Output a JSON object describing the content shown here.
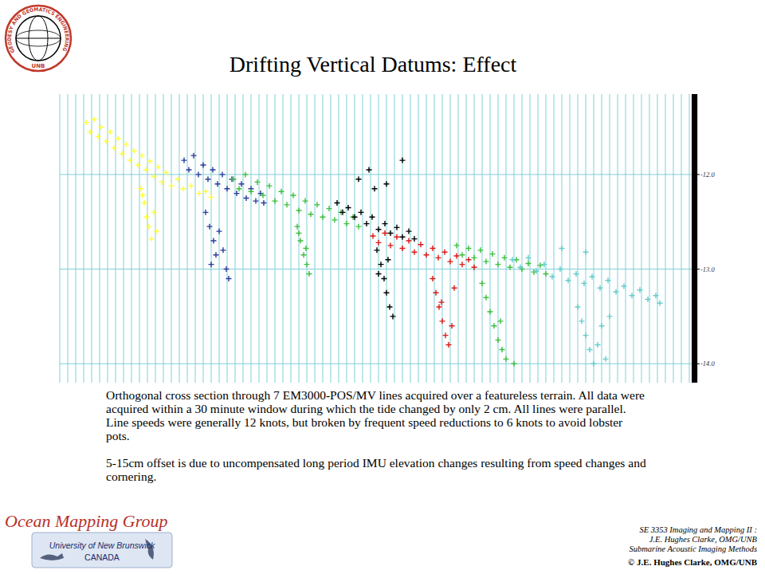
{
  "header": {
    "logo_ring": "GEODESY AND GEOMATICS ENGINEERING",
    "logo_center": "UNB"
  },
  "chart_data": {
    "type": "scatter",
    "title": "Drifting Vertical Datums: Effect",
    "marker": "plus",
    "grid": true,
    "tick_labels": "y",
    "xlim": [
      0,
      80
    ],
    "xticks": [
      0,
      1,
      2,
      3,
      4,
      5,
      6,
      7,
      8,
      9,
      10,
      11,
      12,
      13,
      14,
      15,
      16,
      17,
      18,
      19,
      20,
      21,
      22,
      23,
      24,
      25,
      26,
      27,
      28,
      29,
      30,
      31,
      32,
      33,
      34,
      35,
      36,
      37,
      38,
      39,
      40,
      41,
      42,
      43,
      44,
      45,
      46,
      47,
      48,
      49,
      50,
      51,
      52,
      53,
      54,
      55,
      56,
      57,
      58,
      59,
      60,
      61,
      62,
      63,
      64,
      65,
      66,
      67,
      68,
      69,
      70,
      71,
      72,
      73,
      74,
      75,
      76,
      77,
      78,
      79,
      80
    ],
    "ylim": [
      -14.2,
      -11.15
    ],
    "yticks": [
      {
        "value": -12,
        "label": "-12.0"
      },
      {
        "value": -13,
        "label": "-13.0"
      },
      {
        "value": -14,
        "label": "-14.0"
      }
    ],
    "series": [
      {
        "color": "#ffff33",
        "x": [
          3.3,
          3.8,
          4.3,
          4.8,
          5.2,
          5.8,
          6.3,
          6.8,
          7.3,
          7.8,
          8.3,
          8.8,
          9.3,
          9.8,
          10.3,
          10.8,
          11.3,
          11.8,
          12.3,
          12.8,
          13.3,
          14.0,
          14.8,
          15.5,
          16.5,
          17.5,
          18.3,
          19.0,
          10.2,
          10.6,
          10.9,
          11.2,
          11.5,
          11.8,
          12.1,
          10.4
        ],
        "values": [
          -11.45,
          -11.55,
          -11.42,
          -11.6,
          -11.5,
          -11.65,
          -11.55,
          -11.72,
          -11.62,
          -11.78,
          -11.68,
          -11.85,
          -11.75,
          -11.9,
          -11.8,
          -11.95,
          -11.86,
          -12.02,
          -11.92,
          -12.08,
          -11.98,
          -12.12,
          -12.05,
          -12.15,
          -12.12,
          -12.2,
          -12.18,
          -12.24,
          -12.15,
          -12.3,
          -12.45,
          -12.55,
          -12.68,
          -12.4,
          -12.6,
          -12.22
        ]
      },
      {
        "color": "#2b3a9c",
        "x": [
          15.6,
          16.2,
          16.8,
          17.4,
          18.0,
          18.6,
          19.2,
          19.8,
          20.4,
          21.0,
          21.6,
          22.2,
          22.8,
          23.4,
          24.0,
          24.6,
          25.2,
          25.6,
          18.3,
          18.8,
          19.3,
          19.6,
          20.0,
          20.5,
          20.9,
          21.2,
          19.0
        ],
        "values": [
          -11.85,
          -11.95,
          -11.8,
          -12.0,
          -11.9,
          -12.05,
          -11.95,
          -12.1,
          -12.0,
          -12.15,
          -12.05,
          -12.2,
          -12.1,
          -12.25,
          -12.15,
          -12.28,
          -12.2,
          -12.3,
          -12.4,
          -12.55,
          -12.7,
          -12.85,
          -12.6,
          -12.8,
          -13.0,
          -13.1,
          -12.95
        ]
      },
      {
        "color": "#3cbf3c",
        "x": [
          21.8,
          22.5,
          23.3,
          24.0,
          24.8,
          25.5,
          26.3,
          27.0,
          27.8,
          28.5,
          29.3,
          30.0,
          30.8,
          31.5,
          32.3,
          33.0,
          33.8,
          34.5,
          35.3,
          36.0,
          36.8,
          37.5,
          29.8,
          30.2,
          30.6,
          31.0,
          31.3,
          30.0,
          30.9
        ],
        "values": [
          -12.05,
          -12.15,
          -12.0,
          -12.18,
          -12.08,
          -12.22,
          -12.12,
          -12.28,
          -12.18,
          -12.32,
          -12.22,
          -12.38,
          -12.28,
          -12.42,
          -12.32,
          -12.45,
          -12.36,
          -12.48,
          -12.4,
          -12.52,
          -12.45,
          -12.55,
          -12.55,
          -12.7,
          -12.85,
          -12.95,
          -13.05,
          -12.62,
          -12.78
        ]
      },
      {
        "color": "#000000",
        "x": [
          34.8,
          35.5,
          36.2,
          37.0,
          37.8,
          38.5,
          39.2,
          40.0,
          40.8,
          41.5,
          42.3,
          43.0,
          43.8,
          44.5,
          37.5,
          38.8,
          41.0,
          43.0,
          39.5,
          39.8,
          40.3,
          40.7,
          41.0,
          41.4,
          41.8,
          40.0,
          41.2
        ],
        "values": [
          -12.3,
          -12.4,
          -12.35,
          -12.45,
          -12.4,
          -12.52,
          -12.45,
          -12.58,
          -12.52,
          -12.62,
          -12.56,
          -12.66,
          -12.6,
          -12.68,
          -12.05,
          -11.95,
          -12.1,
          -11.85,
          -12.15,
          -12.8,
          -12.95,
          -13.1,
          -13.25,
          -13.4,
          -13.5,
          -13.05,
          -12.9
        ]
      },
      {
        "color": "#e01818",
        "x": [
          39.3,
          40.0,
          40.8,
          41.5,
          42.3,
          43.0,
          43.8,
          44.5,
          45.3,
          46.0,
          46.8,
          47.5,
          48.3,
          49.0,
          49.8,
          50.5,
          51.3,
          52.0,
          46.8,
          47.2,
          47.6,
          48.0,
          48.4,
          48.8,
          49.2,
          47.9,
          49.5
        ],
        "values": [
          -12.65,
          -12.72,
          -12.62,
          -12.75,
          -12.66,
          -12.78,
          -12.7,
          -12.82,
          -12.74,
          -12.85,
          -12.78,
          -12.88,
          -12.82,
          -12.92,
          -12.86,
          -12.95,
          -12.9,
          -12.98,
          -13.1,
          -13.25,
          -13.4,
          -13.55,
          -13.7,
          -13.8,
          -13.6,
          -13.35,
          -13.2
        ]
      },
      {
        "color": "#3cbf3c",
        "x": [
          49.8,
          50.5,
          51.3,
          52.0,
          52.8,
          53.5,
          54.3,
          55.0,
          55.8,
          56.5,
          57.3,
          58.0,
          58.8,
          59.5,
          60.3,
          61.0,
          53.0,
          53.5,
          54.0,
          54.5,
          55.0,
          55.5,
          56.0,
          57.0,
          55.3
        ],
        "values": [
          -12.75,
          -12.85,
          -12.78,
          -12.88,
          -12.8,
          -12.92,
          -12.84,
          -12.95,
          -12.88,
          -12.98,
          -12.9,
          -13.0,
          -12.94,
          -13.03,
          -12.96,
          -13.05,
          -13.15,
          -13.3,
          -13.45,
          -13.6,
          -13.75,
          -13.85,
          -13.95,
          -14.0,
          -13.55
        ]
      },
      {
        "color": "#66cccc",
        "x": [
          56.8,
          57.8,
          58.8,
          59.8,
          60.8,
          61.8,
          62.8,
          63.8,
          64.8,
          65.8,
          66.8,
          67.8,
          68.8,
          69.8,
          70.8,
          71.8,
          72.8,
          73.8,
          74.8,
          75.3,
          63.0,
          66.0,
          65.0,
          65.5,
          66.0,
          66.5,
          67.0,
          67.5,
          68.0,
          68.5,
          69.0
        ],
        "values": [
          -12.9,
          -12.98,
          -12.88,
          -13.02,
          -12.95,
          -13.08,
          -13.0,
          -13.12,
          -13.05,
          -13.15,
          -13.08,
          -13.2,
          -13.12,
          -13.24,
          -13.18,
          -13.28,
          -13.22,
          -13.32,
          -13.28,
          -13.36,
          -12.78,
          -12.82,
          -13.4,
          -13.55,
          -13.7,
          -13.85,
          -14.0,
          -13.8,
          -13.6,
          -13.95,
          -13.5
        ]
      }
    ],
    "annotations": [
      "Orthogonal cross section through 7 EM3000-POS/MV lines acquired over a featureless terrain. All data were acquired within a 30 minute window during which the tide changed by only 2 cm. All lines were parallel. Line speeds were generally 12 knots, but broken by frequent speed reductions to 6 knots to avoid lobster pots.",
      "5-15cm offset is due to uncompensated long period IMU elevation changes resulting from speed changes and cornering."
    ]
  },
  "footer": {
    "group": "Ocean Mapping Group",
    "university": "University of New Brunswick",
    "country": "CANADA",
    "course": [
      "SE 3353 Imaging and Mapping II :",
      "J.E. Hughes Clarke, OMG/UNB",
      "Submarine Acoustic Imaging Methods"
    ],
    "copyright": "© J.E. Hughes Clarke, OMG/UNB"
  }
}
